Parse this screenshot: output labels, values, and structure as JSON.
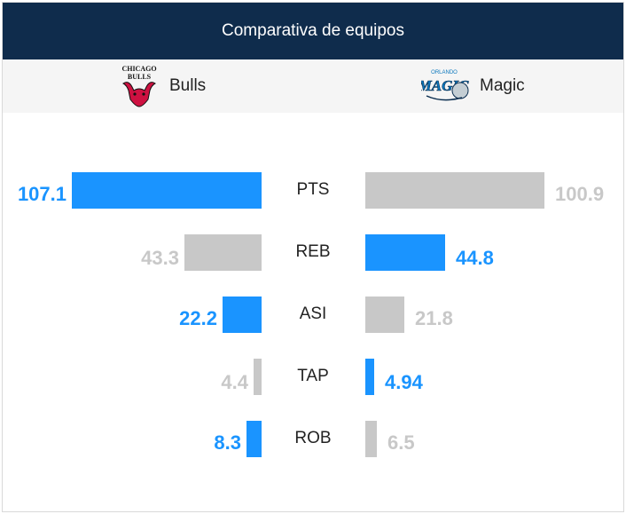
{
  "header": {
    "title": "Comparativa de equipos"
  },
  "teams": {
    "left": {
      "name": "Bulls",
      "logo_icon": "chicago-bulls-logo-icon",
      "logo_text": "CHICAGO BULLS"
    },
    "right": {
      "name": "Magic",
      "logo_icon": "orlando-magic-logo-icon",
      "logo_text": "ORLANDO MAGIC"
    }
  },
  "colors": {
    "highlight": "#1a94ff",
    "muted": "#c8c8c8",
    "header_bg": "#0f2c4c"
  },
  "chart_data": {
    "type": "bar",
    "categories": [
      "PTS",
      "REB",
      "ASI",
      "TAP",
      "ROB"
    ],
    "series": [
      {
        "name": "Bulls",
        "values": [
          107.1,
          43.3,
          22.2,
          4.4,
          8.3
        ],
        "labels": [
          "107.1",
          "43.3",
          "22.2",
          "4.4",
          "8.3"
        ]
      },
      {
        "name": "Magic",
        "values": [
          100.9,
          44.8,
          21.8,
          4.94,
          6.5
        ],
        "labels": [
          "100.9",
          "44.8",
          "21.8",
          "4.94",
          "6.5"
        ]
      }
    ],
    "highlight": [
      "Bulls",
      "Magic",
      "Bulls",
      "Magic",
      "Bulls"
    ]
  }
}
